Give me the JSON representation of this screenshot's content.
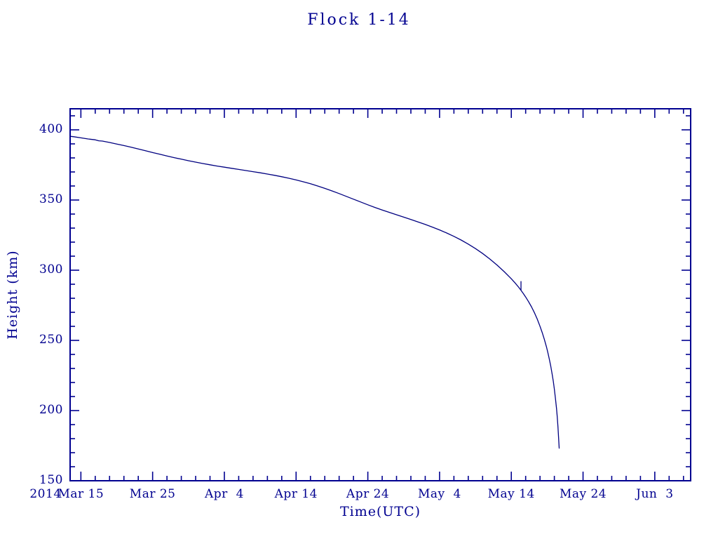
{
  "page": {
    "background": "#ffffff"
  },
  "chart_data": {
    "type": "line",
    "title": "Flock 1-14",
    "xlabel": "Time(UTC)",
    "ylabel": "Height (km)",
    "x_year_label": "2014",
    "xlim": [
      -1.5,
      85
    ],
    "ylim": [
      150,
      415
    ],
    "x_major_ticks": [
      0,
      10,
      20,
      30,
      40,
      50,
      60,
      70,
      80
    ],
    "x_tick_labels": [
      "Mar 15",
      "Mar 25",
      "Apr  4",
      "Apr 14",
      "Apr 24",
      "May  4",
      "May 14",
      "May 24",
      "Jun  3"
    ],
    "x_minor_tick_step": 2,
    "y_major_ticks": [
      150,
      200,
      250,
      300,
      350,
      400
    ],
    "y_tick_labels": [
      "150",
      "200",
      "250",
      "300",
      "350",
      "400"
    ],
    "y_minor_tick_step": 10,
    "grid": false,
    "legend": "none",
    "line_color": "#000080",
    "axis_color": "#000090",
    "series": [
      {
        "name": "Flock 1-14 height",
        "x_units": "days since Mar 15 2014",
        "points": [
          [
            -1.5,
            395.4
          ],
          [
            -1,
            395.1
          ],
          [
            0,
            394.3
          ],
          [
            1,
            393.5
          ],
          [
            2,
            392.9
          ],
          [
            2.5,
            392.2
          ],
          [
            3,
            392.0
          ],
          [
            4,
            391.0
          ],
          [
            5,
            389.9
          ],
          [
            6,
            388.8
          ],
          [
            7,
            387.6
          ],
          [
            8,
            386.4
          ],
          [
            9,
            385.1
          ],
          [
            10,
            383.8
          ],
          [
            11,
            382.6
          ],
          [
            12,
            381.4
          ],
          [
            13,
            380.2
          ],
          [
            14,
            379.1
          ],
          [
            15,
            378.0
          ],
          [
            16,
            377.0
          ],
          [
            17,
            376.0
          ],
          [
            18,
            375.1
          ],
          [
            19,
            374.2
          ],
          [
            20,
            373.4
          ],
          [
            21,
            372.6
          ],
          [
            22,
            371.8
          ],
          [
            23,
            371.0
          ],
          [
            24,
            370.2
          ],
          [
            25,
            369.4
          ],
          [
            26,
            368.5
          ],
          [
            27,
            367.6
          ],
          [
            28,
            366.6
          ],
          [
            29,
            365.5
          ],
          [
            30,
            364.3
          ],
          [
            31,
            363.0
          ],
          [
            32,
            361.6
          ],
          [
            33,
            360.0
          ],
          [
            34,
            358.3
          ],
          [
            35,
            356.5
          ],
          [
            36,
            354.6
          ],
          [
            37,
            352.6
          ],
          [
            38,
            350.6
          ],
          [
            39,
            348.6
          ],
          [
            40,
            346.6
          ],
          [
            41,
            344.7
          ],
          [
            42,
            342.9
          ],
          [
            43,
            341.2
          ],
          [
            44,
            339.5
          ],
          [
            45,
            337.8
          ],
          [
            46,
            336.1
          ],
          [
            47,
            334.4
          ],
          [
            48,
            332.6
          ],
          [
            49,
            330.7
          ],
          [
            50,
            328.7
          ],
          [
            51,
            326.5
          ],
          [
            52,
            324.1
          ],
          [
            53,
            321.5
          ],
          [
            54,
            318.6
          ],
          [
            55,
            315.4
          ],
          [
            56,
            311.9
          ],
          [
            57,
            308.0
          ],
          [
            58,
            303.7
          ],
          [
            59,
            299.0
          ],
          [
            60,
            293.9
          ],
          [
            60.5,
            291.1
          ],
          [
            61,
            288.0
          ],
          [
            61.35,
            285.7
          ],
          [
            61.7,
            283.2
          ],
          [
            62,
            280.9
          ],
          [
            62.4,
            277.6
          ],
          [
            62.8,
            274.0
          ],
          [
            63.2,
            269.9
          ],
          [
            63.6,
            265.3
          ],
          [
            64,
            260.1
          ],
          [
            64.3,
            255.7
          ],
          [
            64.6,
            250.8
          ],
          [
            64.9,
            245.3
          ],
          [
            65.1,
            241.2
          ],
          [
            65.3,
            236.7
          ],
          [
            65.5,
            231.6
          ],
          [
            65.7,
            225.8
          ],
          [
            65.85,
            220.9
          ],
          [
            66,
            215.3
          ],
          [
            66.15,
            208.9
          ],
          [
            66.3,
            201.5
          ],
          [
            66.4,
            195.7
          ],
          [
            66.5,
            188.8
          ],
          [
            66.6,
            180.2
          ],
          [
            66.65,
            174.9
          ],
          [
            66.67,
            173.2
          ]
        ]
      }
    ],
    "spike": {
      "day": 61.35,
      "from_km": 285.7,
      "to_km": 292.2
    }
  }
}
